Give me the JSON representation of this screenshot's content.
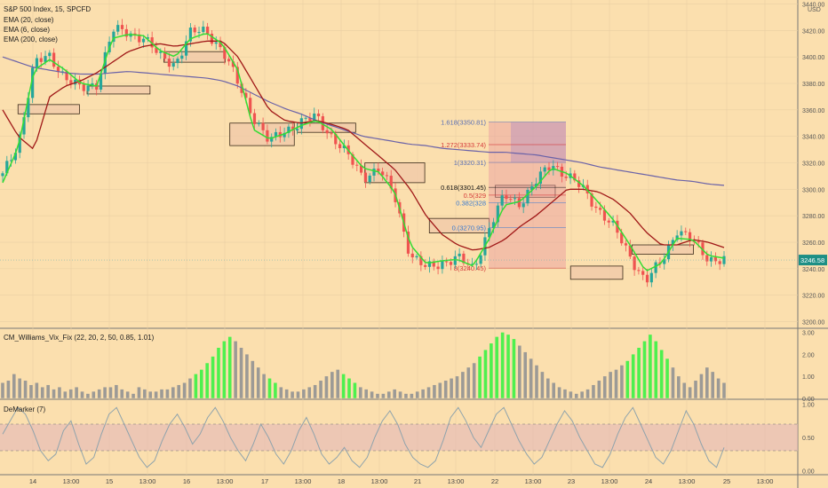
{
  "header": {
    "title": "S&P 500 Index, 15, SPCFD",
    "indicators": [
      "EMA (20, close)",
      "EMA (6, close)",
      "EMA (200, close)"
    ],
    "currency": "USD"
  },
  "panels": {
    "vix_label": "CM_Williams_Vix_Fix (22, 20, 2, 50, 0.85, 1.01)",
    "demarker_label": "DeMarker (7)"
  },
  "colors": {
    "background": "#fbdfae",
    "candle_up": "#26a69a",
    "candle_down": "#ef5350",
    "ema_fast": "#33dd33",
    "ema_mid": "#a01818",
    "ema_slow": "#6a62a8",
    "vix_gray": "#9c9a96",
    "vix_green": "#4ef04e",
    "demarker_line": "#8fa3ac",
    "zone_fill": "#f0c8a8"
  },
  "chart_data": [
    {
      "type": "candlestick",
      "title": "S&P 500 Index, 15, SPCFD",
      "x_ticks": [
        "14",
        "13:00",
        "15",
        "13:00",
        "16",
        "13:00",
        "17",
        "13:00",
        "18",
        "13:00",
        "21",
        "13:00",
        "22",
        "13:00",
        "23",
        "13:00",
        "24",
        "13:00",
        "25",
        "13:00"
      ],
      "y_ticks": [
        3200,
        3220,
        3240,
        3260,
        3280,
        3300,
        3320,
        3340,
        3360,
        3380,
        3400,
        3420,
        3440
      ],
      "ylim": [
        3195,
        3443
      ],
      "ohlc_path": [
        3310,
        3335,
        3395,
        3400,
        3385,
        3375,
        3380,
        3420,
        3418,
        3415,
        3400,
        3395,
        3418,
        3420,
        3405,
        3380,
        3355,
        3335,
        3345,
        3350,
        3355,
        3340,
        3325,
        3310,
        3315,
        3295,
        3250,
        3240,
        3245,
        3248,
        3240,
        3270,
        3295,
        3290,
        3305,
        3320,
        3310,
        3300,
        3285,
        3270,
        3250,
        3230,
        3245,
        3270,
        3260,
        3248,
        3246.58
      ],
      "ema6": [
        3305,
        3332,
        3390,
        3398,
        3390,
        3380,
        3378,
        3414,
        3417,
        3416,
        3405,
        3400,
        3414,
        3418,
        3410,
        3390,
        3345,
        3338,
        3342,
        3348,
        3352,
        3345,
        3330,
        3316,
        3313,
        3298,
        3258,
        3244,
        3246,
        3247,
        3242,
        3262,
        3288,
        3291,
        3302,
        3316,
        3312,
        3303,
        3290,
        3276,
        3258,
        3238,
        3244,
        3263,
        3262,
        3250,
        3248
      ],
      "ema20": [
        3360,
        3340,
        3330,
        3370,
        3378,
        3382,
        3388,
        3396,
        3404,
        3408,
        3410,
        3408,
        3410,
        3412,
        3412,
        3400,
        3380,
        3360,
        3352,
        3350,
        3352,
        3349,
        3345,
        3335,
        3325,
        3315,
        3300,
        3280,
        3266,
        3258,
        3254,
        3256,
        3262,
        3272,
        3280,
        3290,
        3300,
        3300,
        3298,
        3292,
        3282,
        3268,
        3258,
        3258,
        3262,
        3260,
        3256
      ],
      "ema200": [
        3400,
        3396,
        3392,
        3390,
        3388,
        3387,
        3387,
        3388,
        3389,
        3388,
        3387,
        3386,
        3385,
        3384,
        3382,
        3378,
        3372,
        3366,
        3361,
        3357,
        3352,
        3348,
        3344,
        3340,
        3338,
        3336,
        3334,
        3333,
        3331,
        3330,
        3329,
        3328,
        3328,
        3327,
        3326,
        3324,
        3322,
        3320,
        3317,
        3315,
        3313,
        3311,
        3309,
        3307,
        3306,
        3304,
        3303
      ],
      "last_price": "3246.58",
      "fibonacci": [
        {
          "label": "1.618(3350.81)",
          "value": 3350.81
        },
        {
          "label": "1.272(3333.74)",
          "value": 3333.74
        },
        {
          "label": "1(3320.31)",
          "value": 3320.31
        },
        {
          "label": "0.618(3301.45)",
          "value": 3301.45
        },
        {
          "label": "0.5(329",
          "value": 3295.6
        },
        {
          "label": "0.382(328",
          "value": 3289.8
        },
        {
          "label": "0.(3270.95)",
          "value": 3270.95
        },
        {
          "label": "8(3240.45)",
          "value": 3240.45
        }
      ],
      "zones": [
        {
          "x1": 1,
          "x2": 5,
          "y_top": 3364,
          "y_bot": 3357
        },
        {
          "x1": 5.5,
          "x2": 9.6,
          "y_top": 3378,
          "y_bot": 3372
        },
        {
          "x1": 10.5,
          "x2": 14.5,
          "y_top": 3404,
          "y_bot": 3396
        },
        {
          "x1": 14.8,
          "x2": 19,
          "y_top": 3350,
          "y_bot": 3333
        },
        {
          "x1": 19.2,
          "x2": 23,
          "y_top": 3350,
          "y_bot": 3343
        },
        {
          "x1": 23.6,
          "x2": 27.5,
          "y_top": 3320,
          "y_bot": 3305
        },
        {
          "x1": 27.8,
          "x2": 31.7,
          "y_top": 3278,
          "y_bot": 3267
        },
        {
          "x1": 32.1,
          "x2": 36,
          "y_top": 3303,
          "y_bot": 3294
        },
        {
          "x1": 37,
          "x2": 40.4,
          "y_top": 3242,
          "y_bot": 3232
        },
        {
          "x1": 41,
          "x2": 45,
          "y_top": 3258,
          "y_bot": 3251
        }
      ]
    },
    {
      "type": "bar",
      "title": "CM_Williams_Vix_Fix (22, 20, 2, 50, 0.85, 1.01)",
      "y_ticks": [
        0,
        1,
        2,
        3
      ],
      "ylim": [
        -0.05,
        3.15
      ],
      "values": [
        0.7,
        0.8,
        1.1,
        0.9,
        0.8,
        0.6,
        0.7,
        0.5,
        0.6,
        0.4,
        0.5,
        0.3,
        0.4,
        0.5,
        0.3,
        0.2,
        0.3,
        0.4,
        0.5,
        0.5,
        0.6,
        0.4,
        0.3,
        0.2,
        0.5,
        0.4,
        0.3,
        0.3,
        0.4,
        0.4,
        0.5,
        0.6,
        0.7,
        0.9,
        1.1,
        1.3,
        1.6,
        1.9,
        2.3,
        2.6,
        2.8,
        2.6,
        2.3,
        2.0,
        1.7,
        1.4,
        1.1,
        0.9,
        0.7,
        0.5,
        0.4,
        0.3,
        0.3,
        0.4,
        0.5,
        0.6,
        0.8,
        1.0,
        1.2,
        1.3,
        1.1,
        0.9,
        0.7,
        0.5,
        0.4,
        0.3,
        0.2,
        0.2,
        0.3,
        0.4,
        0.3,
        0.2,
        0.2,
        0.3,
        0.4,
        0.5,
        0.6,
        0.7,
        0.8,
        0.9,
        1.0,
        1.2,
        1.4,
        1.6,
        1.9,
        2.2,
        2.5,
        2.8,
        3.0,
        2.9,
        2.7,
        2.4,
        2.1,
        1.8,
        1.5,
        1.2,
        0.9,
        0.7,
        0.5,
        0.4,
        0.3,
        0.2,
        0.3,
        0.4,
        0.6,
        0.8,
        1.0,
        1.2,
        1.3,
        1.5,
        1.7,
        2.0,
        2.3,
        2.6,
        2.9,
        2.6,
        2.2,
        1.8,
        1.4,
        1.0,
        0.7,
        0.5,
        0.8,
        1.1,
        1.4,
        1.2,
        0.9,
        0.7
      ],
      "highlighted_ranges": [
        [
          34,
          40
        ],
        [
          47,
          48
        ],
        [
          60,
          62
        ],
        [
          84,
          90
        ],
        [
          110,
          117
        ]
      ]
    },
    {
      "type": "line",
      "title": "DeMarker (7)",
      "y_ticks": [
        0,
        0.5,
        1
      ],
      "ylim": [
        -0.06,
        1.06
      ],
      "upper_band": 0.7,
      "lower_band": 0.3,
      "values": [
        0.55,
        0.75,
        0.95,
        0.85,
        0.6,
        0.3,
        0.15,
        0.25,
        0.6,
        0.75,
        0.4,
        0.1,
        0.2,
        0.55,
        0.85,
        0.95,
        0.7,
        0.45,
        0.2,
        0.05,
        0.15,
        0.45,
        0.7,
        0.85,
        0.65,
        0.4,
        0.55,
        0.8,
        0.95,
        0.75,
        0.5,
        0.3,
        0.15,
        0.4,
        0.7,
        0.5,
        0.25,
        0.1,
        0.3,
        0.6,
        0.8,
        0.55,
        0.25,
        0.1,
        0.2,
        0.35,
        0.15,
        0.05,
        0.2,
        0.5,
        0.75,
        0.9,
        0.7,
        0.4,
        0.2,
        0.1,
        0.05,
        0.15,
        0.45,
        0.8,
        0.95,
        0.75,
        0.5,
        0.35,
        0.6,
        0.85,
        0.95,
        0.7,
        0.45,
        0.25,
        0.1,
        0.2,
        0.45,
        0.7,
        0.9,
        0.75,
        0.5,
        0.3,
        0.1,
        0.05,
        0.25,
        0.55,
        0.8,
        0.95,
        0.7,
        0.45,
        0.2,
        0.1,
        0.3,
        0.6,
        0.9,
        0.7,
        0.4,
        0.15,
        0.05,
        0.35
      ]
    }
  ]
}
